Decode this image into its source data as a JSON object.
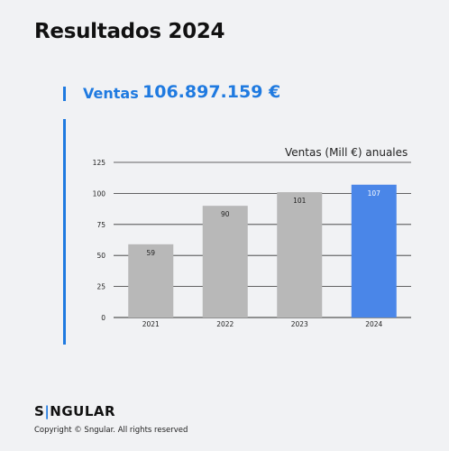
{
  "header": {
    "title": "Resultados 2024"
  },
  "kpi": {
    "label": "Ventas",
    "value": "106.897.159 €"
  },
  "chart_data": {
    "type": "bar",
    "title": "Ventas (Mill €) anuales",
    "categories": [
      "2021",
      "2022",
      "2023",
      "2024"
    ],
    "values": [
      59,
      90,
      101,
      107
    ],
    "ylim": [
      0,
      125
    ],
    "yticks": [
      0,
      25,
      50,
      75,
      100,
      125
    ],
    "grid": true,
    "colors": {
      "default": "#b8b8b8",
      "highlight": "#4a86e8"
    },
    "highlight_category": "2024"
  },
  "footer": {
    "brand_prefix": "S",
    "brand_suffix": "NGULAR",
    "copyright": "Copyright © Sngular. All rights reserved"
  }
}
